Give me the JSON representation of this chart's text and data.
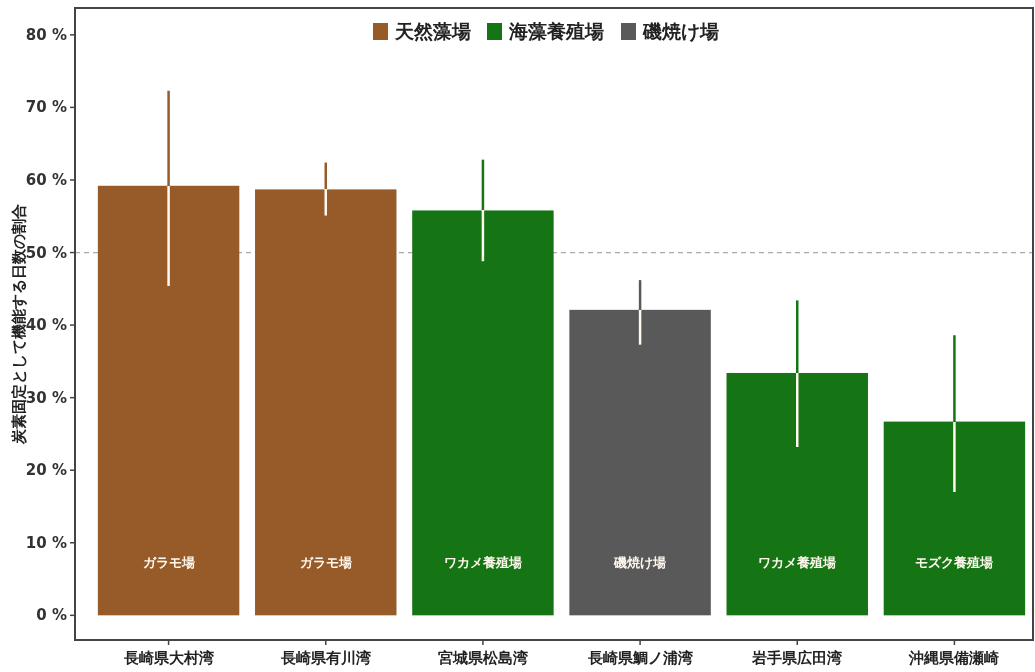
{
  "chart_data": {
    "type": "bar",
    "ylabel": "炭素固定として機能する日数の割合",
    "categories": [
      "長崎県大村湾",
      "長崎県有川湾",
      "宮城県松島湾",
      "長崎県鯛ノ浦湾",
      "岩手県広田湾",
      "沖縄県備瀬崎"
    ],
    "series": [
      {
        "name": "天然藻場",
        "color": "#965b28",
        "values": [
          59.2,
          58.7,
          null,
          null,
          null,
          null
        ],
        "errors": [
          [
            45.4,
            72.3
          ],
          [
            55.1,
            62.4
          ],
          null,
          null,
          null,
          null
        ]
      },
      {
        "name": "海藻養殖場",
        "color": "#157515",
        "values": [
          null,
          null,
          55.8,
          null,
          33.4,
          26.7
        ],
        "errors": [
          null,
          null,
          [
            48.8,
            62.8
          ],
          null,
          [
            23.2,
            43.4
          ],
          [
            17.0,
            38.6
          ]
        ]
      },
      {
        "name": "磯焼け場",
        "color": "#595959",
        "values": [
          null,
          null,
          null,
          42.1,
          null,
          null
        ],
        "errors": [
          null,
          null,
          null,
          [
            37.3,
            46.2
          ],
          null,
          null
        ]
      }
    ],
    "ylim": [
      -3.4,
      83.7
    ],
    "yticks": [
      {
        "value": 0,
        "label": "0 %"
      },
      {
        "value": 10,
        "label": "10 %"
      },
      {
        "value": 20,
        "label": "20 %"
      },
      {
        "value": 30,
        "label": "30 %"
      },
      {
        "value": 40,
        "label": "40 %"
      },
      {
        "value": 50,
        "label": "50 %"
      },
      {
        "value": 60,
        "label": "60 %"
      },
      {
        "value": 70,
        "label": "70 %"
      },
      {
        "value": 80,
        "label": "80 %"
      }
    ],
    "ref_lines": [
      {
        "axis": "y",
        "value": 50,
        "color": "#aaaaaa",
        "line_style": "dashed"
      }
    ],
    "annotations": [
      "ガラモ場",
      "ガラモ場",
      "ワカメ養殖場",
      "磯焼け場",
      "ワカメ養殖場",
      "モズク養殖場"
    ],
    "legend": "top",
    "grid": false
  }
}
